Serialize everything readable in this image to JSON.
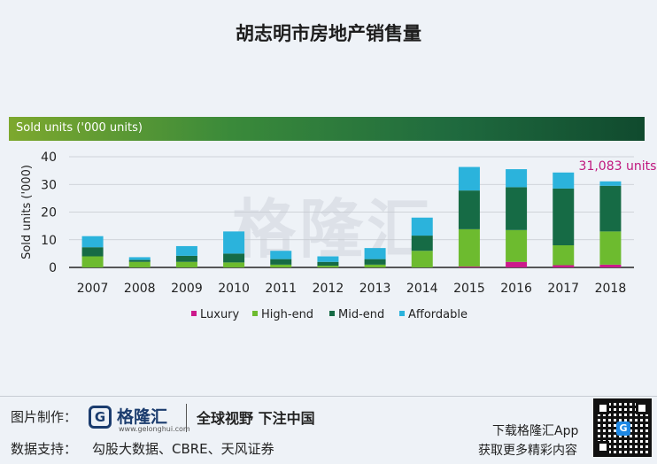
{
  "page": {
    "title": "胡志明市房地产销售量",
    "band_label": "Sold units ('000 units)",
    "watermark": "格隆汇"
  },
  "footer": {
    "made_by_label": "图片制作：",
    "brand_name": "格隆汇",
    "brand_url": "www.gelonghui.com",
    "brand_icon_letter": "G",
    "slogan": "全球视野 下注中国",
    "data_support_label": "数据支持：",
    "data_sources": "勾股大数据、CBRE、天风证券",
    "download_line1": "下载格隆汇App",
    "download_line2": "获取更多精彩内容"
  },
  "chart_data": {
    "type": "bar",
    "stacked": true,
    "ylabel": "Sold units ('000)",
    "ylim": [
      0,
      40
    ],
    "yticks": [
      0,
      10,
      20,
      30,
      40
    ],
    "categories": [
      "2007",
      "2008",
      "2009",
      "2010",
      "2011",
      "2012",
      "2013",
      "2014",
      "2015",
      "2016",
      "2017",
      "2018"
    ],
    "series": [
      {
        "name": "Luxury",
        "color": "#cc1a8c",
        "values": [
          0,
          0,
          0,
          0,
          0,
          0,
          0,
          0,
          0.3,
          2.0,
          0.8,
          1.0
        ]
      },
      {
        "name": "High-end",
        "color": "#6dbb2f",
        "values": [
          4.0,
          2.0,
          2.0,
          1.8,
          1.0,
          0.6,
          1.0,
          6.0,
          13.5,
          11.5,
          7.2,
          12.0
        ]
      },
      {
        "name": "Mid-end",
        "color": "#166b45",
        "values": [
          3.3,
          0.7,
          2.2,
          3.2,
          2.0,
          1.4,
          2.0,
          5.5,
          14.0,
          15.5,
          20.5,
          16.5
        ]
      },
      {
        "name": "Affordable",
        "color": "#2bb3dc",
        "values": [
          4.0,
          1.0,
          3.5,
          8.0,
          3.0,
          2.0,
          4.0,
          6.5,
          8.5,
          6.5,
          5.8,
          1.6
        ]
      }
    ],
    "annotation": {
      "text": "31,083 units",
      "category": "2018",
      "color": "#c0187e"
    },
    "legend": "bottom"
  }
}
